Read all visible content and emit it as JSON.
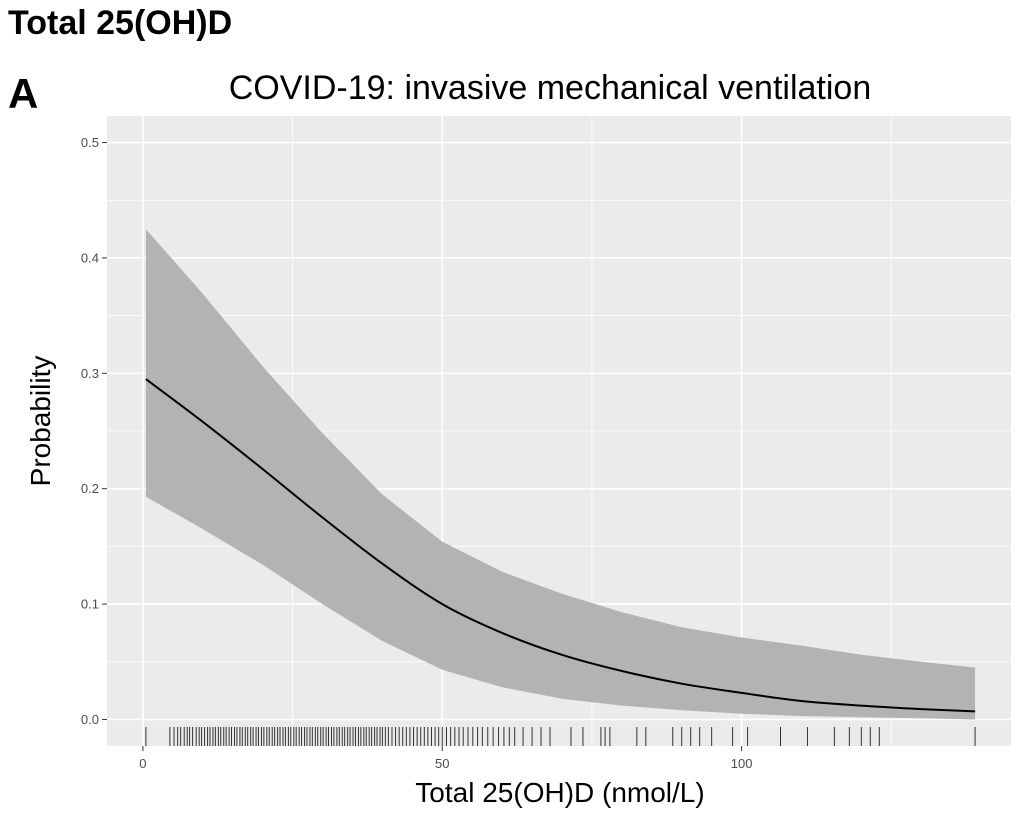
{
  "figure_title": "Total 25(OH)D",
  "panel_label": "A",
  "colors": {
    "panel_bg": "#ebebeb",
    "grid": "#ffffff",
    "ribbon": "#b3b3b3",
    "line": "#000000",
    "rug": "#333333",
    "tick_text": "#4d4d4d"
  },
  "chart_data": {
    "type": "line",
    "title": "COVID-19: invasive mechanical ventilation",
    "xlabel": "Total 25(OH)D (nmol/L)",
    "ylabel": "Probability",
    "xlim": [
      -6,
      145
    ],
    "ylim": [
      -0.023,
      0.523
    ],
    "x_ticks": [
      0,
      50,
      100
    ],
    "x_tick_labels": [
      "0",
      "50",
      "100"
    ],
    "y_ticks": [
      0.0,
      0.1,
      0.2,
      0.3,
      0.4,
      0.5
    ],
    "y_tick_labels": [
      "0.0",
      "0.1",
      "0.2",
      "0.3",
      "0.4",
      "0.5"
    ],
    "grid": true,
    "legend": "none",
    "series": [
      {
        "x": [
          0.5,
          10,
          20,
          30,
          40,
          50,
          60,
          70,
          80,
          90,
          100,
          110,
          120,
          130,
          139
        ],
        "y": [
          0.295,
          0.258,
          0.217,
          0.175,
          0.135,
          0.1,
          0.075,
          0.056,
          0.042,
          0.031,
          0.023,
          0.016,
          0.012,
          0.009,
          0.007
        ],
        "lower": [
          0.193,
          0.165,
          0.134,
          0.1,
          0.068,
          0.043,
          0.028,
          0.018,
          0.012,
          0.008,
          0.005,
          0.003,
          0.002,
          0.001,
          0.0
        ],
        "upper": [
          0.425,
          0.369,
          0.306,
          0.248,
          0.195,
          0.154,
          0.128,
          0.109,
          0.093,
          0.08,
          0.071,
          0.064,
          0.056,
          0.05,
          0.045
        ]
      }
    ],
    "rug_x": [
      0.5,
      4.5,
      5.2,
      5.8,
      6.3,
      6.9,
      7.4,
      7.8,
      8.3,
      8.9,
      9.4,
      9.8,
      10.3,
      10.8,
      11.2,
      11.7,
      12.1,
      12.6,
      13.0,
      13.5,
      13.9,
      14.4,
      14.8,
      15.3,
      15.7,
      16.2,
      16.6,
      17.1,
      17.5,
      18.0,
      18.4,
      18.9,
      19.3,
      19.8,
      20.2,
      20.7,
      21.1,
      21.6,
      22.0,
      22.5,
      22.9,
      23.4,
      23.8,
      24.3,
      24.7,
      25.2,
      25.6,
      26.1,
      26.5,
      27.0,
      27.4,
      27.9,
      28.3,
      28.8,
      29.2,
      29.7,
      30.1,
      30.6,
      31.0,
      31.5,
      31.9,
      32.4,
      32.8,
      33.3,
      33.7,
      34.2,
      34.6,
      35.1,
      35.5,
      36.0,
      36.4,
      36.9,
      37.3,
      37.8,
      38.2,
      38.7,
      39.1,
      39.6,
      40.0,
      40.5,
      41.0,
      41.6,
      42.2,
      42.8,
      43.4,
      44.0,
      44.6,
      45.2,
      45.8,
      46.4,
      47.0,
      47.6,
      48.2,
      48.8,
      49.4,
      50.0,
      50.7,
      51.4,
      52.1,
      52.8,
      53.5,
      54.3,
      55.1,
      55.9,
      56.7,
      57.6,
      58.5,
      59.4,
      60.3,
      61.2,
      62.1,
      63.5,
      65.0,
      66.5,
      68.0,
      71.5,
      73.5,
      76.5,
      77.2,
      78.0,
      82.5,
      84.0,
      88.5,
      90.0,
      91.5,
      93.0,
      95.0,
      98.5,
      101.0,
      106.5,
      111.0,
      115.5,
      118.0,
      120.0,
      121.5,
      123.0,
      139.0
    ]
  }
}
